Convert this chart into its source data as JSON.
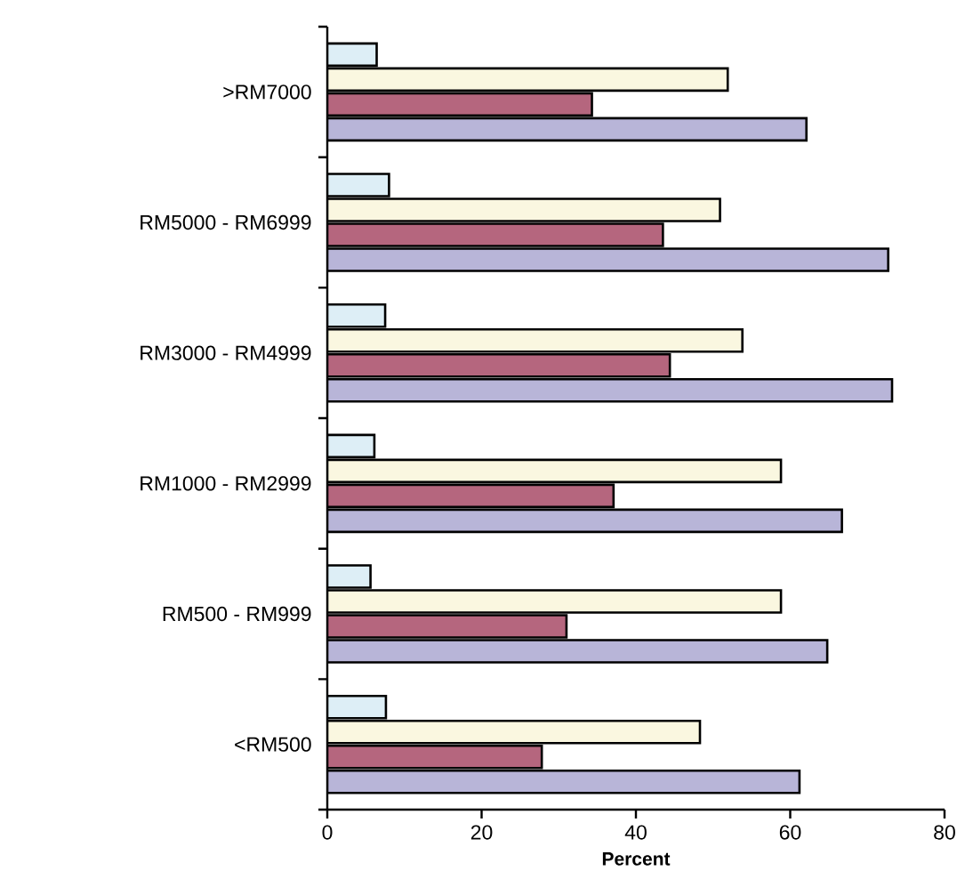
{
  "chart_data": {
    "type": "bar",
    "orientation": "horizontal",
    "xlabel": "Percent",
    "categories": [
      ">RM7000",
      "RM5000 - RM6999",
      "RM3000 - RM4999",
      "RM1000 - RM2999",
      "RM500 - RM999",
      "<RM500"
    ],
    "series": [
      {
        "color": "#ddeef6",
        "values": [
          6.4,
          8.0,
          7.5,
          6.1,
          5.6,
          7.6
        ]
      },
      {
        "color": "#faf7e0",
        "values": [
          51.9,
          50.9,
          53.8,
          58.8,
          58.8,
          48.3
        ]
      },
      {
        "color": "#b5667e",
        "values": [
          34.3,
          43.5,
          44.4,
          37.1,
          31.0,
          27.8
        ]
      },
      {
        "color": "#b8b5d8",
        "values": [
          62.1,
          72.7,
          73.2,
          66.7,
          64.8,
          61.2
        ]
      }
    ],
    "xlim": [
      0,
      80
    ],
    "xticks": [
      0,
      20,
      40,
      60,
      80
    ],
    "grid": false
  }
}
